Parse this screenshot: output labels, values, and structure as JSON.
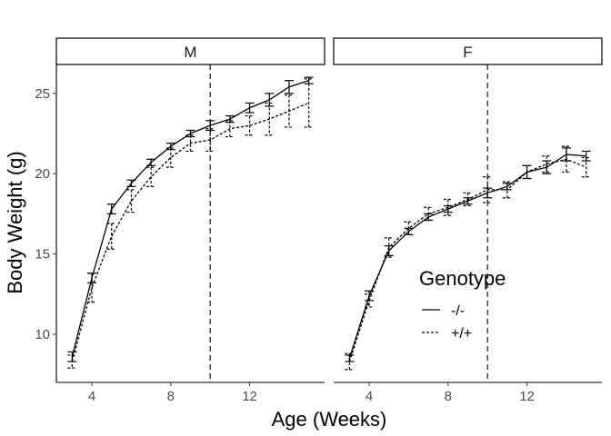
{
  "chart_data": {
    "type": "line",
    "facet_variable": "sex",
    "facets": [
      "M",
      "F"
    ],
    "xlabel": "Age (Weeks)",
    "ylabel": "Body Weight (g)",
    "x_ticks": [
      4,
      8,
      12
    ],
    "y_ticks": [
      10,
      15,
      20,
      25
    ],
    "xlim": [
      2.2,
      15.8
    ],
    "ylim": [
      7.0,
      26.8
    ],
    "vline_x": 10,
    "grid": false,
    "legend": {
      "title": "Genotype",
      "placement": "bottom-right of F panel",
      "entries": [
        {
          "label": "-/-",
          "linetype": "solid"
        },
        {
          "label": "+/+",
          "linetype": "dashed"
        }
      ]
    },
    "x": [
      3,
      4,
      5,
      6,
      7,
      8,
      9,
      10,
      11,
      12,
      13,
      14,
      15
    ],
    "panels": [
      {
        "facet": "M",
        "series": [
          {
            "genotype": "-/-",
            "values": [
              8.6,
              13.5,
              17.8,
              19.4,
              20.7,
              21.7,
              22.5,
              23.0,
              23.4,
              24.1,
              24.6,
              25.4,
              25.8
            ],
            "errors": [
              0.3,
              0.3,
              0.3,
              0.2,
              0.2,
              0.2,
              0.2,
              0.3,
              0.2,
              0.3,
              0.4,
              0.4,
              0.2
            ]
          },
          {
            "genotype": "+/+",
            "values": [
              8.3,
              12.9,
              16.1,
              18.3,
              19.8,
              21.0,
              21.9,
              22.1,
              22.8,
              23.0,
              23.4,
              23.9,
              24.4
            ],
            "errors": [
              0.4,
              0.9,
              0.8,
              0.7,
              0.6,
              0.6,
              0.5,
              0.7,
              0.5,
              0.6,
              1.0,
              1.0,
              1.5
            ]
          }
        ]
      },
      {
        "facet": "F",
        "series": [
          {
            "genotype": "-/-",
            "values": [
              8.5,
              12.4,
              15.2,
              16.4,
              17.3,
              17.8,
              18.3,
              18.8,
              19.2,
              20.1,
              20.4,
              21.2,
              21.1
            ],
            "errors": [
              0.2,
              0.3,
              0.3,
              0.2,
              0.2,
              0.2,
              0.2,
              0.3,
              0.2,
              0.4,
              0.4,
              0.4,
              0.3
            ]
          },
          {
            "genotype": "+/+",
            "values": [
              8.3,
              12.1,
              15.4,
              16.6,
              17.5,
              17.9,
              18.4,
              19.0,
              19.0,
              20.1,
              20.6,
              20.9,
              20.4
            ],
            "errors": [
              0.5,
              0.4,
              0.6,
              0.4,
              0.4,
              0.5,
              0.4,
              0.8,
              0.5,
              0.4,
              0.5,
              0.8,
              0.6
            ]
          }
        ]
      }
    ]
  }
}
